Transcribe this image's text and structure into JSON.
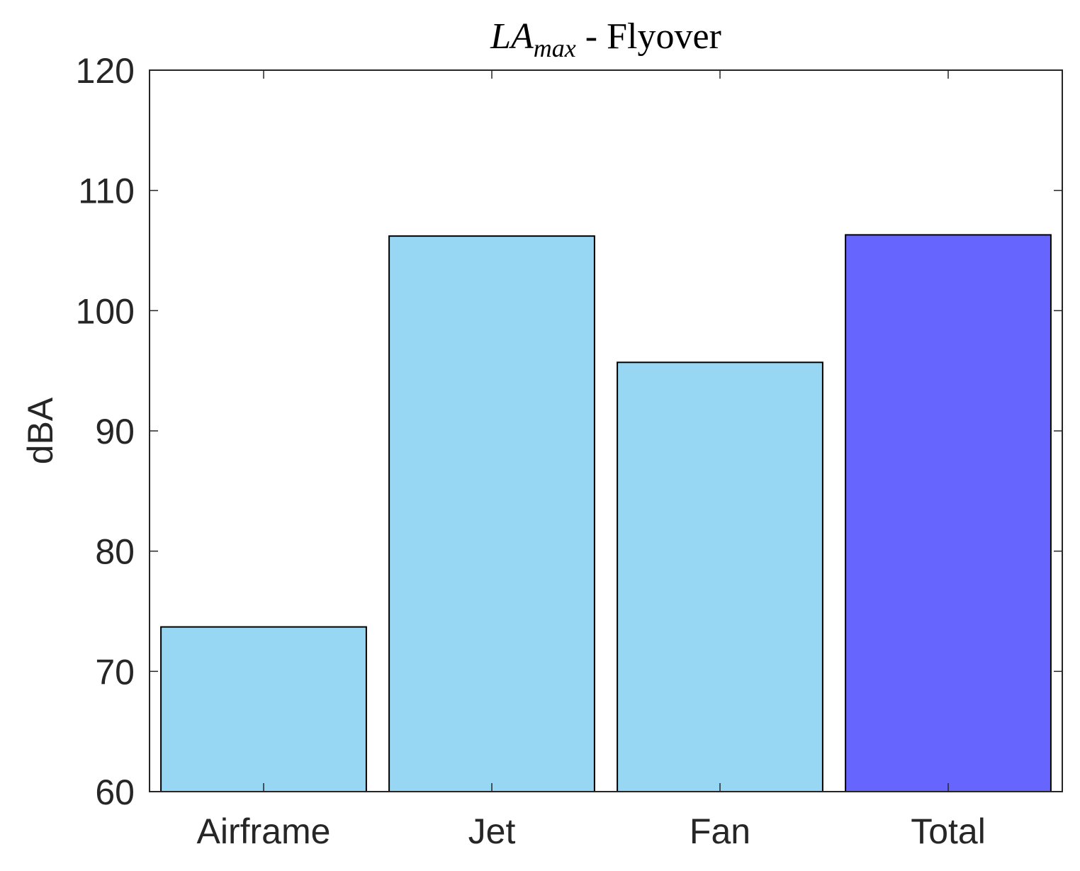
{
  "chart_data": {
    "type": "bar",
    "title": {
      "main": "LA",
      "subscript": "max",
      "rest": " - Flyover"
    },
    "xlabel": "",
    "ylabel": "dBA",
    "categories": [
      "Airframe",
      "Jet",
      "Fan",
      "Total"
    ],
    "values": [
      73.7,
      106.2,
      95.7,
      106.3
    ],
    "bar_colors": [
      "#97d7f3",
      "#97d7f3",
      "#97d7f3",
      "#6666ff"
    ],
    "edge_color": "#000000",
    "ylim": [
      60,
      120
    ],
    "yticks": [
      60,
      70,
      80,
      90,
      100,
      110,
      120
    ],
    "grid": false,
    "legend": "none"
  }
}
